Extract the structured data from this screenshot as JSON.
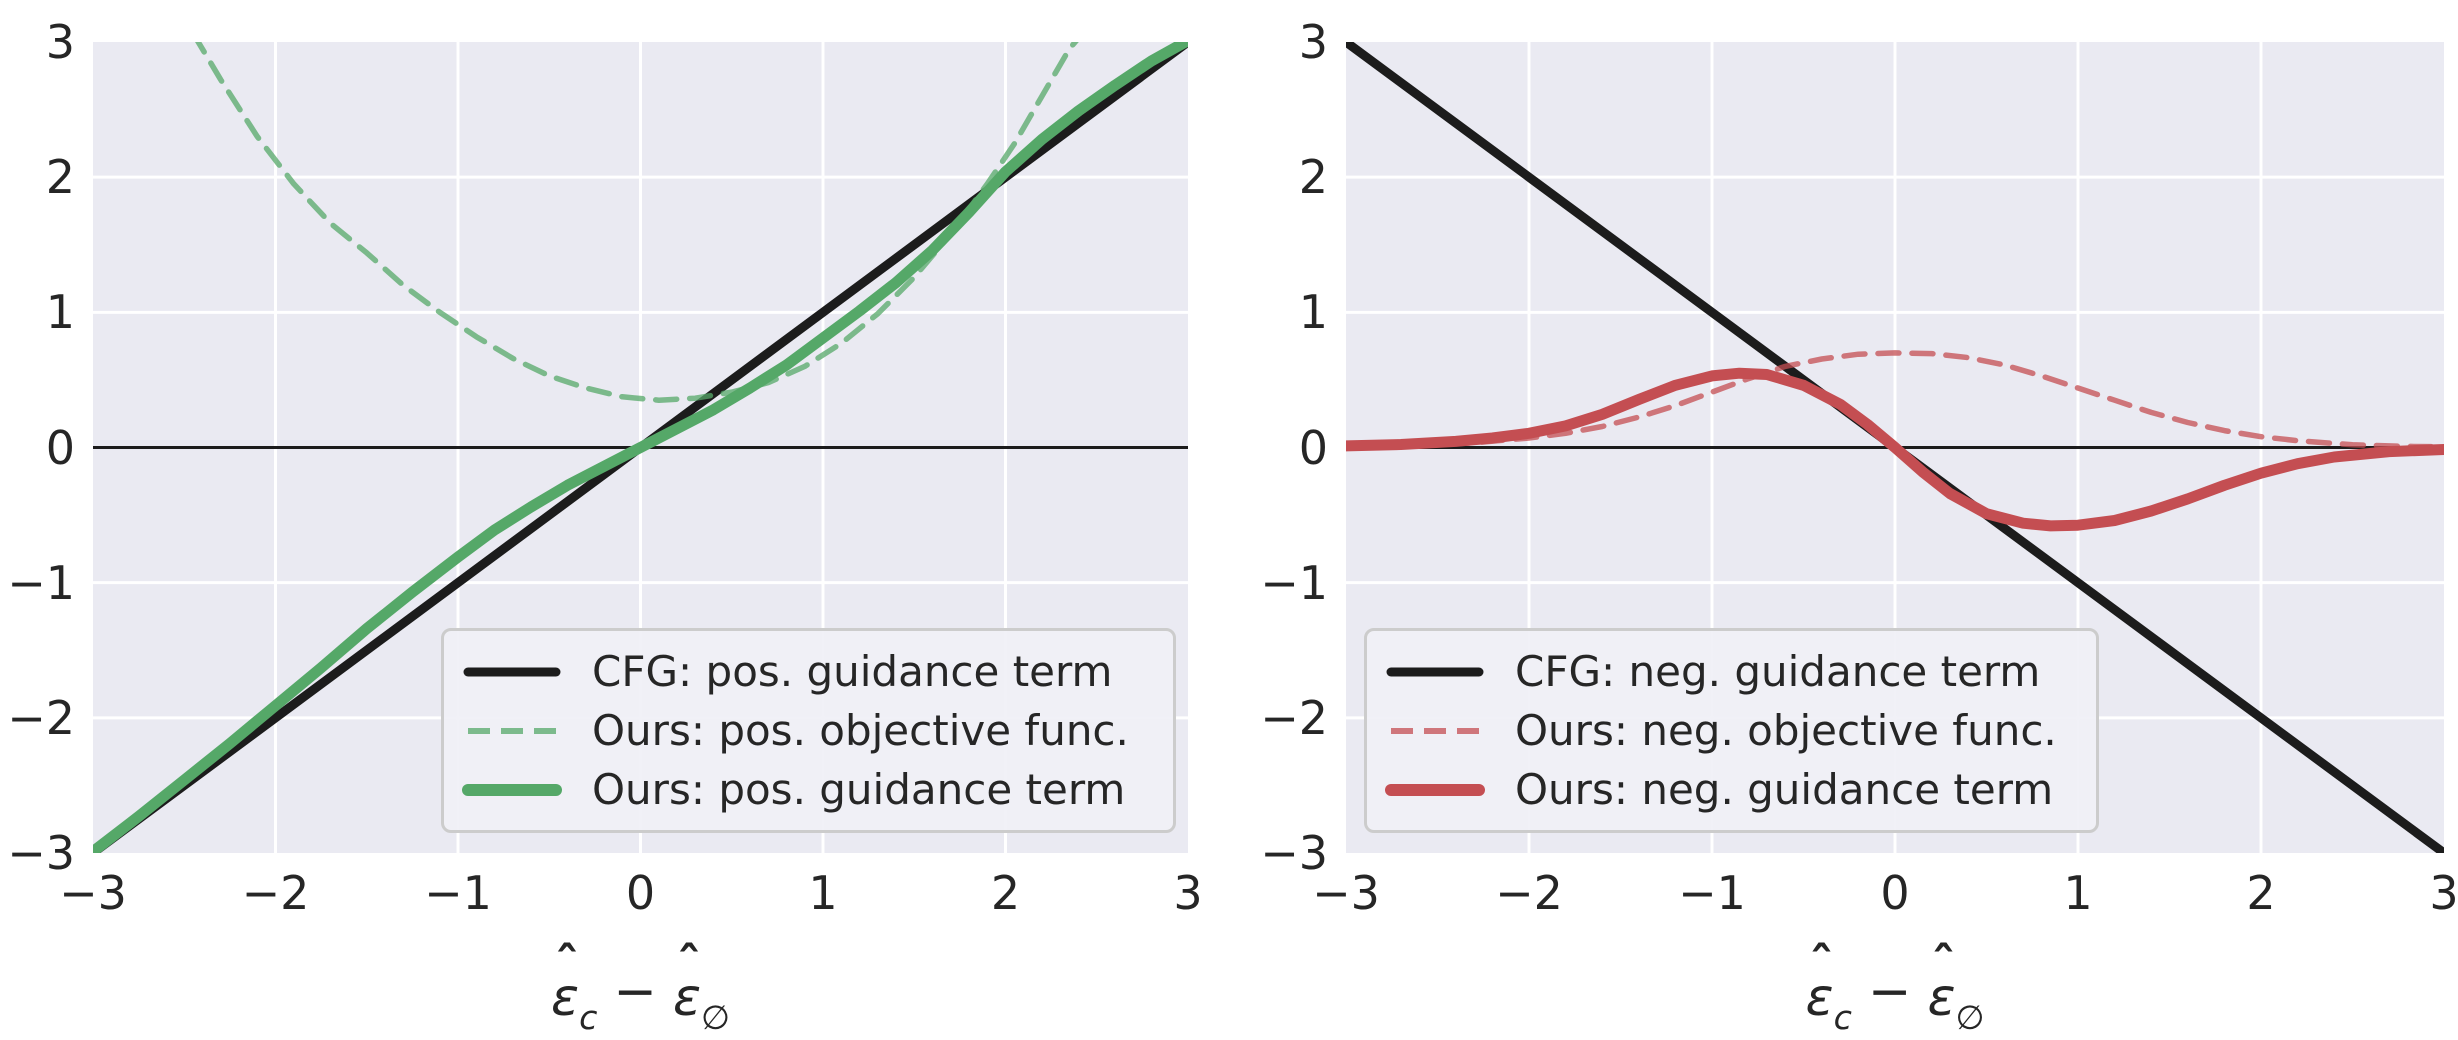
{
  "colors": {
    "black_line": "#1c1c1c",
    "green": "#55a868",
    "red": "#c44e52",
    "plot_background": "#eaeaf2",
    "gridline": "#ffffff",
    "text": "#262626",
    "legend_border": "#cccccc",
    "zero_line": "#1c1c1c"
  },
  "xlabel": {
    "eps": "ε",
    "hat": "ˆ",
    "sub_left": "c",
    "minus": "−",
    "sub_right": "∅"
  },
  "axes": {
    "x_tick_labels": [
      "−3",
      "−2",
      "−1",
      "0",
      "1",
      "2",
      "3"
    ],
    "x_tick_values": [
      -3,
      -2,
      -1,
      0,
      1,
      2,
      3
    ],
    "y_tick_labels": [
      "3",
      "2",
      "1",
      "0",
      "−1",
      "−2",
      "−3"
    ],
    "y_tick_values": [
      3,
      2,
      1,
      0,
      -1,
      -2,
      -3
    ]
  },
  "chart_data": [
    {
      "type": "line",
      "panel": "left",
      "xlim": [
        -3,
        3
      ],
      "ylim": [
        -3,
        3
      ],
      "xlabel_text": "ε̂_c − ε̂_∅",
      "grid": true,
      "zero_line": true,
      "legend_position": "lower right",
      "series": [
        {
          "name": "CFG: pos. guidance term",
          "style": "solid",
          "color": "#1c1c1c",
          "width": 9,
          "opacity": 1,
          "points": [
            [
              -3,
              -3
            ],
            [
              3,
              3
            ]
          ]
        },
        {
          "name": "Ours: pos. objective func.",
          "style": "dashed",
          "color": "#55a868",
          "width": 5.5,
          "opacity": 0.75,
          "points": [
            [
              -2.45,
              3.06
            ],
            [
              -2.3,
              2.72
            ],
            [
              -2.1,
              2.3
            ],
            [
              -1.9,
              1.95
            ],
            [
              -1.7,
              1.66
            ],
            [
              -1.5,
              1.44
            ],
            [
              -1.3,
              1.2
            ],
            [
              -1.1,
              1.0
            ],
            [
              -0.9,
              0.82
            ],
            [
              -0.7,
              0.66
            ],
            [
              -0.5,
              0.53
            ],
            [
              -0.3,
              0.44
            ],
            [
              -0.1,
              0.375
            ],
            [
              0.1,
              0.35
            ],
            [
              0.3,
              0.365
            ],
            [
              0.5,
              0.41
            ],
            [
              0.7,
              0.48
            ],
            [
              0.9,
              0.6
            ],
            [
              1.1,
              0.77
            ],
            [
              1.3,
              0.99
            ],
            [
              1.5,
              1.26
            ],
            [
              1.7,
              1.58
            ],
            [
              1.9,
              1.95
            ],
            [
              2.05,
              2.25
            ],
            [
              2.2,
              2.6
            ],
            [
              2.35,
              2.95
            ],
            [
              2.42,
              3.06
            ]
          ]
        },
        {
          "name": "Ours: pos. guidance term",
          "style": "solid",
          "color": "#55a868",
          "width": 11,
          "opacity": 1,
          "points": [
            [
              -3,
              -2.99
            ],
            [
              -2.75,
              -2.73
            ],
            [
              -2.5,
              -2.46
            ],
            [
              -2.25,
              -2.19
            ],
            [
              -2,
              -1.91
            ],
            [
              -1.75,
              -1.63
            ],
            [
              -1.5,
              -1.34
            ],
            [
              -1.25,
              -1.07
            ],
            [
              -1,
              -0.81
            ],
            [
              -0.8,
              -0.61
            ],
            [
              -0.6,
              -0.44
            ],
            [
              -0.4,
              -0.28
            ],
            [
              -0.2,
              -0.14
            ],
            [
              0,
              0
            ],
            [
              0.2,
              0.14
            ],
            [
              0.4,
              0.28
            ],
            [
              0.6,
              0.44
            ],
            [
              0.8,
              0.61
            ],
            [
              1,
              0.81
            ],
            [
              1.2,
              1.01
            ],
            [
              1.4,
              1.22
            ],
            [
              1.6,
              1.46
            ],
            [
              1.8,
              1.74
            ],
            [
              2,
              2.04
            ],
            [
              2.2,
              2.28
            ],
            [
              2.4,
              2.49
            ],
            [
              2.6,
              2.68
            ],
            [
              2.8,
              2.86
            ],
            [
              3,
              3.01
            ]
          ]
        }
      ]
    },
    {
      "type": "line",
      "panel": "right",
      "xlim": [
        -3,
        3
      ],
      "ylim": [
        -3,
        3
      ],
      "xlabel_text": "ε̂_c − ε̂_∅",
      "grid": true,
      "zero_line": true,
      "legend_position": "lower left",
      "series": [
        {
          "name": "CFG: neg. guidance term",
          "style": "solid",
          "color": "#1c1c1c",
          "width": 9,
          "opacity": 1,
          "points": [
            [
              -3,
              3
            ],
            [
              3,
              -3
            ]
          ]
        },
        {
          "name": "Ours: neg. objective func.",
          "style": "dashed",
          "color": "#c44e52",
          "width": 5.5,
          "opacity": 0.75,
          "points": [
            [
              -3,
              0.005
            ],
            [
              -2.6,
              0.015
            ],
            [
              -2.3,
              0.035
            ],
            [
              -2,
              0.07
            ],
            [
              -1.8,
              0.105
            ],
            [
              -1.6,
              0.155
            ],
            [
              -1.4,
              0.225
            ],
            [
              -1.2,
              0.31
            ],
            [
              -1,
              0.41
            ],
            [
              -0.8,
              0.51
            ],
            [
              -0.6,
              0.6
            ],
            [
              -0.4,
              0.655
            ],
            [
              -0.2,
              0.69
            ],
            [
              0,
              0.7
            ],
            [
              0.2,
              0.695
            ],
            [
              0.4,
              0.665
            ],
            [
              0.6,
              0.61
            ],
            [
              0.8,
              0.53
            ],
            [
              1,
              0.44
            ],
            [
              1.2,
              0.35
            ],
            [
              1.4,
              0.26
            ],
            [
              1.6,
              0.185
            ],
            [
              1.8,
              0.125
            ],
            [
              2,
              0.08
            ],
            [
              2.2,
              0.05
            ],
            [
              2.5,
              0.02
            ],
            [
              2.8,
              0.008
            ],
            [
              3,
              0.005
            ]
          ]
        },
        {
          "name": "Ours: neg. guidance term",
          "style": "solid",
          "color": "#c44e52",
          "width": 11,
          "opacity": 1,
          "points": [
            [
              -3,
              0.012
            ],
            [
              -2.7,
              0.022
            ],
            [
              -2.4,
              0.045
            ],
            [
              -2.2,
              0.07
            ],
            [
              -2,
              0.105
            ],
            [
              -1.8,
              0.16
            ],
            [
              -1.6,
              0.245
            ],
            [
              -1.4,
              0.355
            ],
            [
              -1.2,
              0.46
            ],
            [
              -1,
              0.53
            ],
            [
              -0.85,
              0.55
            ],
            [
              -0.7,
              0.54
            ],
            [
              -0.5,
              0.46
            ],
            [
              -0.3,
              0.32
            ],
            [
              -0.15,
              0.17
            ],
            [
              0,
              0
            ],
            [
              0.15,
              -0.18
            ],
            [
              0.3,
              -0.34
            ],
            [
              0.5,
              -0.49
            ],
            [
              0.7,
              -0.56
            ],
            [
              0.85,
              -0.58
            ],
            [
              1,
              -0.575
            ],
            [
              1.2,
              -0.54
            ],
            [
              1.4,
              -0.47
            ],
            [
              1.6,
              -0.38
            ],
            [
              1.8,
              -0.28
            ],
            [
              2,
              -0.19
            ],
            [
              2.2,
              -0.12
            ],
            [
              2.4,
              -0.07
            ],
            [
              2.7,
              -0.03
            ],
            [
              3,
              -0.015
            ]
          ]
        }
      ]
    }
  ]
}
